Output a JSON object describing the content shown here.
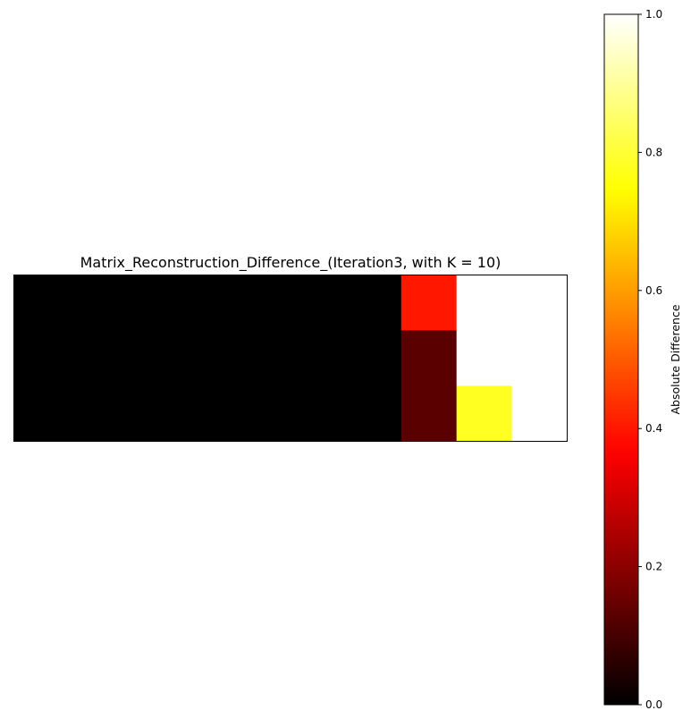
{
  "chart_data": {
    "type": "heatmap",
    "title": "Matrix_Reconstruction_Difference_(Iteration3, with K = 10)",
    "rows": 3,
    "cols": 10,
    "values": [
      [
        0,
        0,
        0,
        0,
        0,
        0,
        0,
        0.4,
        1.0,
        1.0
      ],
      [
        0,
        0,
        0,
        0,
        0,
        0,
        0,
        0.13,
        1.0,
        1.0
      ],
      [
        0,
        0,
        0,
        0,
        0,
        0,
        0,
        0.13,
        0.78,
        1.0
      ]
    ],
    "colormap": "hot",
    "colorbar": {
      "label": "Absolute Difference",
      "range": [
        0,
        1.0
      ],
      "ticks": [
        {
          "value": 0.0,
          "label": "0.0"
        },
        {
          "value": 0.2,
          "label": "0.2"
        },
        {
          "value": 0.4,
          "label": "0.4"
        },
        {
          "value": 0.6,
          "label": "0.6"
        },
        {
          "value": 0.8,
          "label": "0.8"
        },
        {
          "value": 1.0,
          "label": "1.0"
        }
      ]
    },
    "axes_ticks_visible": false,
    "grid": false
  }
}
